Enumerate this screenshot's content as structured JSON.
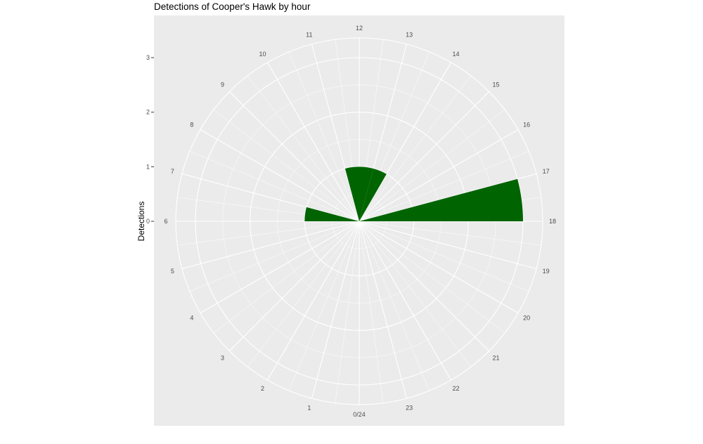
{
  "chart_data": {
    "type": "bar",
    "coord": "polar",
    "title": "Detections of Cooper's Hawk by hour",
    "xlabel": "",
    "ylabel": "Detections",
    "hour_labels": [
      "0/24",
      "1",
      "2",
      "3",
      "4",
      "5",
      "6",
      "7",
      "8",
      "9",
      "10",
      "11",
      "12",
      "13",
      "14",
      "15",
      "16",
      "17",
      "18",
      "19",
      "20",
      "21",
      "22",
      "23"
    ],
    "y_ticks": [
      "0",
      "1",
      "2",
      "3"
    ],
    "ylim": [
      0,
      3
    ],
    "grid": true,
    "legend": "none",
    "values": [
      0,
      0,
      0,
      0,
      0,
      0,
      1,
      0,
      0,
      0,
      0,
      1,
      1,
      1,
      0,
      0,
      0,
      3,
      0,
      0,
      0,
      0,
      0,
      0
    ],
    "colors": {
      "bar": "#006400",
      "panel": "#ebebeb",
      "grid": "#ffffff"
    }
  }
}
